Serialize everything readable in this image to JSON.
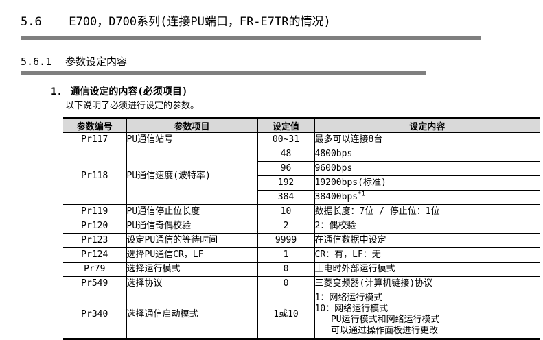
{
  "page": {
    "section": {
      "number": "5.6",
      "title": "E700，D700系列(连接PU端口，FR-E7TR的情况)"
    },
    "subsection": {
      "number": "5.6.1",
      "title": "参数设定内容"
    },
    "item": {
      "number": "1.",
      "title": "通信设定的内容(必须项目)",
      "description": "以下说明了必须进行设定的参数。"
    }
  },
  "table": {
    "headers": [
      "参数编号",
      "参数项目",
      "设定值",
      "设定内容"
    ],
    "rows": [
      {
        "param": "Pr117",
        "item": "PU通信站号",
        "value": "00~31",
        "content": "最多可以连接8台"
      },
      {
        "param": "Pr118",
        "item": "PU通信速度(波特率)",
        "sub": [
          {
            "value": "48",
            "content": "4800bps"
          },
          {
            "value": "96",
            "content": "9600bps"
          },
          {
            "value": "192",
            "content": "19200bps(标准)"
          },
          {
            "value": "384",
            "content": "38400bps",
            "sup": "*1"
          }
        ]
      },
      {
        "param": "Pr119",
        "item": "PU通信停止位长度",
        "value": "10",
        "content": "数据长度：7位 / 停止位：1位"
      },
      {
        "param": "Pr120",
        "item": "PU通信奇偶校验",
        "value": "2",
        "content": "2：偶校验"
      },
      {
        "param": "Pr123",
        "item": "设定PU通信的等待时间",
        "value": "9999",
        "content": "在通信数据中设定"
      },
      {
        "param": "Pr124",
        "item": "选择PU通信CR，LF",
        "value": "1",
        "content": "CR：有，LF：无"
      },
      {
        "param": "Pr79",
        "item": "选择运行模式",
        "value": "0",
        "content": "上电时外部运行模式"
      },
      {
        "param": "Pr549",
        "item": "选择协议",
        "value": "0",
        "content": "三菱变频器(计算机链接)协议"
      },
      {
        "param": "Pr340",
        "item": "选择通信启动模式",
        "value": "1或10",
        "content_lines": [
          "1：网络运行模式",
          "10：网络运行模式",
          "   PU运行模式和网络运行模式",
          "   可以通过操作面板进行更改"
        ]
      }
    ]
  },
  "colors": {
    "accent_bar": "#7f7f7f",
    "table_header_bg": "#d9d9d9",
    "border": "#000000",
    "text": "#000000"
  }
}
